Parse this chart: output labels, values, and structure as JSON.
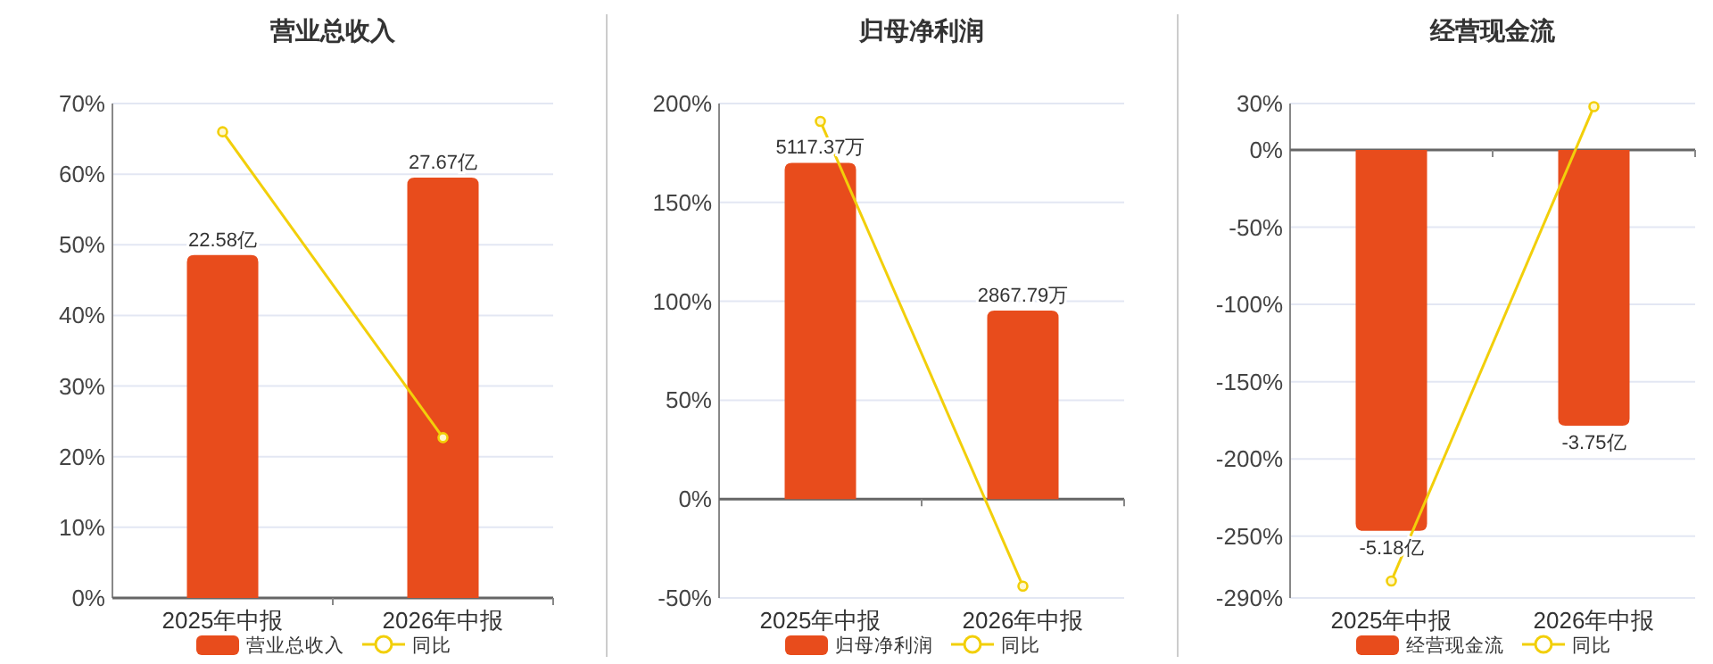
{
  "chart_data": [
    {
      "type": "bar",
      "title": "营业总收入",
      "categories": [
        "2025年中报",
        "2026年中报"
      ],
      "ylim": [
        0,
        70
      ],
      "yticks": [
        {
          "value": 0,
          "label": "0%"
        },
        {
          "value": 10,
          "label": "10%"
        },
        {
          "value": 20,
          "label": "20%"
        },
        {
          "value": 30,
          "label": "30%"
        },
        {
          "value": 40,
          "label": "40%"
        },
        {
          "value": 50,
          "label": "50%"
        },
        {
          "value": 60,
          "label": "60%"
        },
        {
          "value": 70,
          "label": "70%"
        }
      ],
      "grid": "y",
      "legend": "bottom",
      "series": [
        {
          "name": "营业总收入",
          "axis": "y2",
          "color": "#e84c1c",
          "values": [
            22.58,
            27.67
          ],
          "value_labels": [
            "22.58亿",
            "27.67亿"
          ]
        },
        {
          "name": "同比",
          "type": "line",
          "color": "#f2cf0a",
          "marker": "circle",
          "values": [
            66,
            22.7
          ]
        }
      ]
    },
    {
      "type": "bar",
      "title": "归母净利润",
      "categories": [
        "2025年中报",
        "2026年中报"
      ],
      "ylim": [
        -50,
        200
      ],
      "yticks": [
        {
          "value": -50,
          "label": "-50%"
        },
        {
          "value": 0,
          "label": "0%"
        },
        {
          "value": 50,
          "label": "50%"
        },
        {
          "value": 100,
          "label": "100%"
        },
        {
          "value": 150,
          "label": "150%"
        },
        {
          "value": 200,
          "label": "200%"
        }
      ],
      "grid": "y",
      "legend": "bottom",
      "series": [
        {
          "name": "归母净利润",
          "axis": "y2",
          "color": "#e84c1c",
          "values": [
            5117.37,
            2867.79
          ],
          "value_labels": [
            "5117.37万",
            "2867.79万"
          ]
        },
        {
          "name": "同比",
          "type": "line",
          "color": "#f2cf0a",
          "marker": "circle",
          "values": [
            191,
            -44
          ]
        }
      ]
    },
    {
      "type": "bar",
      "title": "经营现金流",
      "categories": [
        "2025年中报",
        "2026年中报"
      ],
      "ylim": [
        -290,
        30
      ],
      "yticks": [
        {
          "value": -290,
          "label": "-290%"
        },
        {
          "value": -250,
          "label": "-250%"
        },
        {
          "value": -200,
          "label": "-200%"
        },
        {
          "value": -150,
          "label": "-150%"
        },
        {
          "value": -100,
          "label": "-100%"
        },
        {
          "value": -50,
          "label": "-50%"
        },
        {
          "value": 0,
          "label": "0%"
        },
        {
          "value": 30,
          "label": "30%"
        }
      ],
      "grid": "y",
      "legend": "bottom",
      "series": [
        {
          "name": "经营现金流",
          "axis": "y2",
          "color": "#e84c1c",
          "values": [
            -5.18,
            -3.75
          ],
          "value_labels": [
            "-5.18亿",
            "-3.75亿"
          ]
        },
        {
          "name": "同比",
          "type": "line",
          "color": "#f2cf0a",
          "marker": "circle",
          "values": [
            -279,
            28
          ]
        }
      ]
    }
  ]
}
